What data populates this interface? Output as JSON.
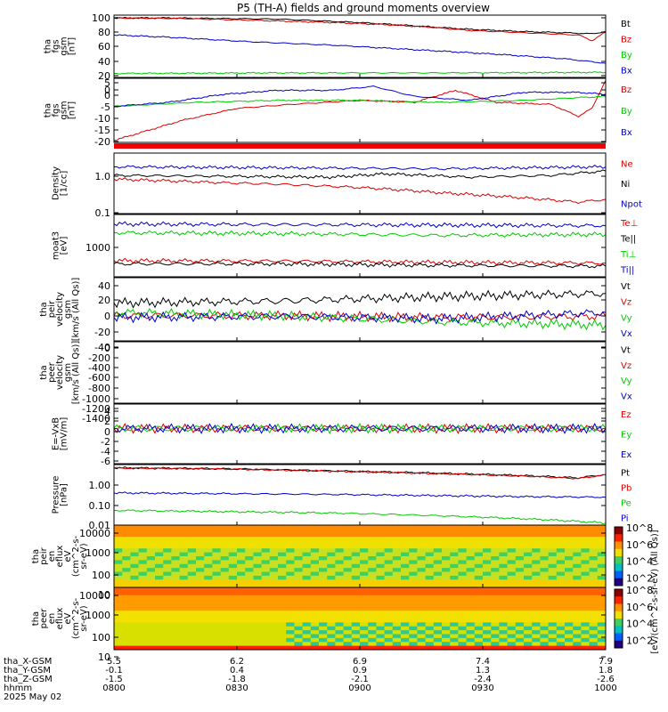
{
  "title": "P5 (TH-A) fields and ground moments overview",
  "chart_data": [
    {
      "type": "line",
      "id": "p1",
      "ylabel": [
        "tha",
        "fgs",
        "gsm",
        "[nT]"
      ],
      "yticks": [
        "100",
        "80",
        "60",
        "40",
        "20",
        "0"
      ],
      "ylim": [
        -5,
        105
      ],
      "series": [
        {
          "name": "Bt",
          "color": "#000000",
          "points": [
            [
              0,
              100
            ],
            [
              20,
              100
            ],
            [
              60,
              98
            ],
            [
              90,
              92
            ],
            [
              110,
              86
            ],
            [
              130,
              80
            ],
            [
              150,
              76
            ],
            [
              165,
              74
            ],
            [
              175,
              72
            ],
            [
              180,
              76
            ]
          ]
        },
        {
          "name": "Bz",
          "color": "#dd0000",
          "points": [
            [
              0,
              100
            ],
            [
              25,
              99
            ],
            [
              50,
              96
            ],
            [
              80,
              92
            ],
            [
              100,
              88
            ],
            [
              115,
              84
            ],
            [
              130,
              78
            ],
            [
              145,
              75
            ],
            [
              160,
              72
            ],
            [
              170,
              70
            ],
            [
              175,
              60
            ],
            [
              180,
              75
            ]
          ]
        },
        {
          "name": "By",
          "color": "#00cc00",
          "points": [
            [
              0,
              2
            ],
            [
              60,
              3
            ],
            [
              120,
              3
            ],
            [
              180,
              4
            ]
          ]
        },
        {
          "name": "Bx",
          "color": "#0000cc",
          "points": [
            [
              0,
              70
            ],
            [
              20,
              66
            ],
            [
              50,
              58
            ],
            [
              80,
              52
            ],
            [
              110,
              44
            ],
            [
              140,
              36
            ],
            [
              165,
              28
            ],
            [
              180,
              20
            ]
          ]
        }
      ]
    },
    {
      "type": "line",
      "id": "p2",
      "ylabel": [
        "tha",
        "fgs",
        "gsm",
        "[nT]"
      ],
      "yticks": [
        "5",
        "0",
        "-5",
        "-10",
        "-15",
        "-20"
      ],
      "ylim": [
        -23,
        9
      ],
      "series": [
        {
          "name": "Bz",
          "color": "#dd0000",
          "points": [
            [
              0,
              -22
            ],
            [
              10,
              -18
            ],
            [
              25,
              -12
            ],
            [
              45,
              -6
            ],
            [
              65,
              -4
            ],
            [
              90,
              -2
            ],
            [
              110,
              -3
            ],
            [
              125,
              3
            ],
            [
              140,
              -3
            ],
            [
              160,
              -4
            ],
            [
              170,
              -10
            ],
            [
              175,
              -6
            ],
            [
              180,
              8
            ]
          ]
        },
        {
          "name": "By",
          "color": "#00cc00",
          "points": [
            [
              0,
              -5
            ],
            [
              30,
              -3
            ],
            [
              60,
              -2
            ],
            [
              90,
              -2
            ],
            [
              120,
              -3
            ],
            [
              150,
              -2
            ],
            [
              180,
              0
            ]
          ]
        },
        {
          "name": "Bx",
          "color": "#0000cc",
          "points": [
            [
              0,
              -5
            ],
            [
              20,
              -3
            ],
            [
              40,
              1
            ],
            [
              60,
              3
            ],
            [
              80,
              3
            ],
            [
              95,
              5
            ],
            [
              110,
              0
            ],
            [
              130,
              -2
            ],
            [
              150,
              2
            ],
            [
              170,
              2
            ],
            [
              180,
              1
            ]
          ]
        }
      ]
    },
    {
      "type": "line",
      "id": "p3",
      "ylabel": [
        "Density",
        "[1/cc]"
      ],
      "yticks": [
        "1.0",
        "0.1"
      ],
      "log": true,
      "ylim": [
        0.07,
        4
      ],
      "series": [
        {
          "name": "Ne",
          "color": "#dd0000",
          "points": [
            [
              0,
              0.7
            ],
            [
              40,
              0.55
            ],
            [
              60,
              0.5
            ],
            [
              90,
              0.4
            ],
            [
              120,
              0.28
            ],
            [
              150,
              0.2
            ],
            [
              170,
              0.15
            ],
            [
              180,
              0.18
            ]
          ]
        },
        {
          "name": "Ni",
          "color": "#000000",
          "points": [
            [
              0,
              0.9
            ],
            [
              40,
              0.85
            ],
            [
              80,
              0.8
            ],
            [
              100,
              1.0
            ],
            [
              130,
              0.8
            ],
            [
              160,
              0.9
            ],
            [
              180,
              1.2
            ]
          ]
        },
        {
          "name": "Npot",
          "color": "#0000cc",
          "points": [
            [
              0,
              1.6
            ],
            [
              60,
              1.5
            ],
            [
              120,
              1.4
            ],
            [
              180,
              1.6
            ]
          ]
        }
      ]
    },
    {
      "type": "line",
      "id": "p4",
      "ylabel": [
        "moat3",
        "[eV]"
      ],
      "yticks": [
        "1000"
      ],
      "log": true,
      "ylim": [
        300,
        6000
      ],
      "series": [
        {
          "name": "Te⊥",
          "color": "#dd0000",
          "points": [
            [
              0,
              650
            ],
            [
              60,
              640
            ],
            [
              120,
              600
            ],
            [
              180,
              580
            ]
          ]
        },
        {
          "name": "Te||",
          "color": "#000000",
          "points": [
            [
              0,
              560
            ],
            [
              60,
              560
            ],
            [
              120,
              520
            ],
            [
              180,
              500
            ]
          ]
        },
        {
          "name": "Ti⊥",
          "color": "#00cc00",
          "points": [
            [
              0,
              2500
            ],
            [
              60,
              2400
            ],
            [
              120,
              2200
            ],
            [
              180,
              2300
            ]
          ]
        },
        {
          "name": "Ti||",
          "color": "#0000cc",
          "points": [
            [
              0,
              3800
            ],
            [
              60,
              3700
            ],
            [
              120,
              3600
            ],
            [
              180,
              3500
            ]
          ]
        }
      ]
    },
    {
      "type": "line",
      "id": "p5",
      "ylabel": [
        "tha",
        "peir",
        "velocity",
        "gsm",
        "[km/s (All Qs)]"
      ],
      "yticks": [
        "40",
        "20",
        "0",
        "-20",
        "-40"
      ],
      "ylim": [
        -45,
        55
      ],
      "series": [
        {
          "name": "Vt",
          "color": "#000000",
          "points": [
            [
              0,
              15
            ],
            [
              60,
              18
            ],
            [
              120,
              25
            ],
            [
              180,
              30
            ]
          ]
        },
        {
          "name": "Vz",
          "color": "#dd0000",
          "points": [
            [
              0,
              -5
            ],
            [
              60,
              -5
            ],
            [
              120,
              -8
            ],
            [
              180,
              -6
            ]
          ]
        },
        {
          "name": "Vy",
          "color": "#00cc00",
          "points": [
            [
              0,
              0
            ],
            [
              60,
              -5
            ],
            [
              120,
              -15
            ],
            [
              180,
              -20
            ]
          ]
        },
        {
          "name": "Vx",
          "color": "#0000cc",
          "points": [
            [
              0,
              -8
            ],
            [
              60,
              -6
            ],
            [
              120,
              -10
            ],
            [
              180,
              0
            ]
          ]
        }
      ]
    },
    {
      "type": "line",
      "id": "p6",
      "ylabel": [
        "tha",
        "peer",
        "velocity",
        "gsm",
        "[km/s (All Qs)]"
      ],
      "yticks": [
        "0",
        "-200",
        "-400",
        "-600",
        "-800",
        "-1000",
        "-1200",
        "-1400"
      ],
      "ylim": [
        -1450,
        80
      ],
      "legend": [
        "Vt",
        "Vz",
        "Vy",
        "Vx"
      ],
      "legend_colors": [
        "#000000",
        "#dd0000",
        "#00cc00",
        "#0000cc"
      ],
      "series": []
    },
    {
      "type": "line",
      "id": "p7",
      "ylabel": [
        "E=-VxB",
        "[mV/m]"
      ],
      "yticks": [
        "4",
        "2",
        "0",
        "-2",
        "-4",
        "-6"
      ],
      "ylim": [
        -6.5,
        4.5
      ],
      "series": [
        {
          "name": "Ez",
          "color": "#dd0000",
          "points": [
            [
              0,
              0
            ],
            [
              90,
              0
            ],
            [
              180,
              0
            ]
          ]
        },
        {
          "name": "Ey",
          "color": "#00cc00",
          "points": [
            [
              0,
              0
            ],
            [
              90,
              0
            ],
            [
              180,
              0
            ]
          ]
        },
        {
          "name": "Ex",
          "color": "#0000cc",
          "points": [
            [
              0,
              0
            ],
            [
              90,
              0
            ],
            [
              180,
              0
            ]
          ]
        }
      ]
    },
    {
      "type": "line",
      "id": "p8",
      "ylabel": [
        "Pressure",
        "[nPa]"
      ],
      "yticks": [
        "1.00",
        "0.10",
        "0.01"
      ],
      "log": true,
      "ylim": [
        0.008,
        6
      ],
      "series": [
        {
          "name": "Pt",
          "color": "#000000",
          "points": [
            [
              0,
              4.2
            ],
            [
              40,
              3.8
            ],
            [
              80,
              3.0
            ],
            [
              120,
              2.3
            ],
            [
              150,
              1.8
            ],
            [
              170,
              1.4
            ],
            [
              180,
              2.0
            ]
          ]
        },
        {
          "name": "Pb",
          "color": "#dd0000",
          "points": [
            [
              0,
              4.1
            ],
            [
              40,
              3.7
            ],
            [
              80,
              2.9
            ],
            [
              120,
              2.2
            ],
            [
              150,
              1.7
            ],
            [
              170,
              1.3
            ],
            [
              180,
              1.9
            ]
          ]
        },
        {
          "name": "Pe",
          "color": "#00cc00",
          "points": [
            [
              0,
              0.04
            ],
            [
              40,
              0.035
            ],
            [
              80,
              0.03
            ],
            [
              120,
              0.022
            ],
            [
              150,
              0.016
            ],
            [
              180,
              0.01
            ]
          ]
        },
        {
          "name": "Pi",
          "color": "#0000cc",
          "points": [
            [
              0,
              0.27
            ],
            [
              40,
              0.25
            ],
            [
              80,
              0.23
            ],
            [
              120,
              0.2
            ],
            [
              150,
              0.18
            ],
            [
              180,
              0.17
            ]
          ]
        }
      ]
    },
    {
      "type": "heatmap",
      "id": "p9",
      "ylabel": [
        "tha",
        "peir",
        "en",
        "eflux",
        "eV",
        "(cm^2-s-",
        "sr-eV)"
      ],
      "yticks": [
        "10000",
        "1000",
        "100",
        "10"
      ],
      "log": true
    },
    {
      "type": "heatmap",
      "id": "p10",
      "ylabel": [
        "tha",
        "peer",
        "en",
        "eflux",
        "eV",
        "(cm^2-s-",
        "sr-eV)"
      ],
      "yticks": [
        "10000",
        "1000",
        "100",
        "10"
      ],
      "log": true
    }
  ],
  "colorbar": {
    "ticks": [
      "10^8",
      "10^6",
      "10^4",
      "10^2"
    ],
    "label": "[eV/(cm^2-s-sr-eV) (All Qs)]"
  },
  "xaxis": {
    "row_labels": [
      "tha_X-GSM",
      "tha_Y-GSM",
      "tha_Z-GSM",
      "hhmm",
      "2025 May 02"
    ],
    "columns": [
      {
        "x": "5.5",
        "y": "-0.1",
        "z": "-1.5",
        "t": "0800"
      },
      {
        "x": "6.2",
        "y": "0.4",
        "z": "-1.8",
        "t": "0830"
      },
      {
        "x": "6.9",
        "y": "0.9",
        "z": "-2.1",
        "t": "0900"
      },
      {
        "x": "7.4",
        "y": "1.3",
        "z": "-2.4",
        "t": "0930"
      },
      {
        "x": "7.9",
        "y": "1.8",
        "z": "-2.6",
        "t": "1000"
      }
    ]
  }
}
